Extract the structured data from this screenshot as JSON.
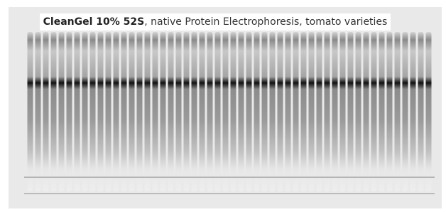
{
  "title": {
    "bold": "CleanGel 10% 52S",
    "rest": ", native Protein Electrophoresis, tomato varieties"
  }
}
